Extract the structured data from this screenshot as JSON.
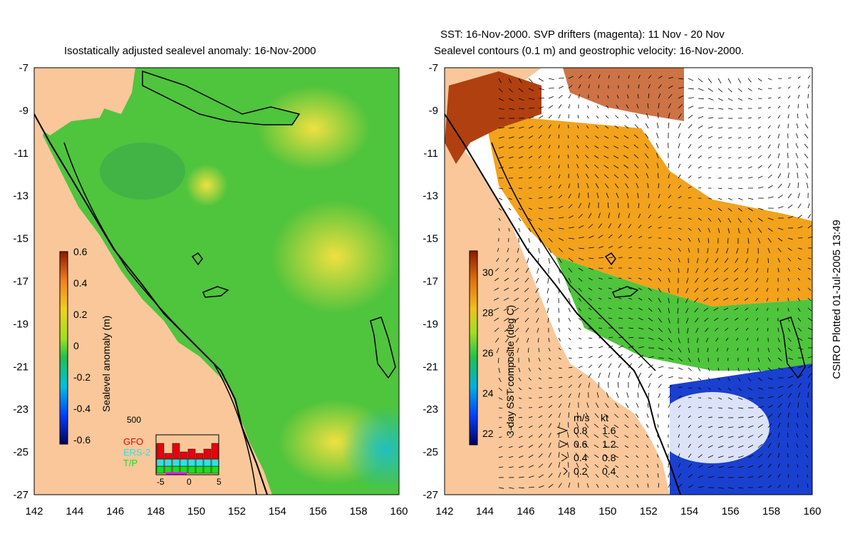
{
  "titles": {
    "left": "Isostatically adjusted sealevel anomaly: 16-Nov-2000",
    "right_line1": "SST: 16-Nov-2000. SVP drifters (magenta): 11 Nov - 20 Nov",
    "right_line2": "Sealevel contours (0.1 m) and geostrophic velocity: 16-Nov-2000."
  },
  "credit": "CSIRO Plotted 01-Jul-2005 13:49",
  "axes": {
    "x_ticks": [
      "142",
      "144",
      "146",
      "148",
      "150",
      "152",
      "154",
      "156",
      "158",
      "160"
    ],
    "y_ticks": [
      "-7",
      "-9",
      "-11",
      "-13",
      "-15",
      "-17",
      "-19",
      "-21",
      "-23",
      "-25",
      "-27"
    ],
    "x_ticks_right": [
      "144",
      "146",
      "148",
      "150",
      "152",
      "154",
      "156",
      "158",
      "160"
    ]
  },
  "left_colorbar": {
    "label": "Sealevel anomaly (m)",
    "ticks": [
      "0.6",
      "0.4",
      "0.2",
      "0",
      "-0.2",
      "-0.4",
      "-0.6"
    ]
  },
  "right_colorbar": {
    "label": "3-day SST composite (deg C)",
    "ticks": [
      "30",
      "28",
      "26",
      "24",
      "22"
    ]
  },
  "inset": {
    "top_label": "500",
    "legend": [
      "GFO",
      "ERS-2",
      "T/P"
    ],
    "x_ticks": [
      "-5",
      "0",
      "5"
    ],
    "colors": {
      "GFO": "#e8000b",
      "ERS-2": "#33e0e0",
      "T/P": "#1ddd1d"
    }
  },
  "velocity_legend": {
    "units": [
      "m/s",
      "kt"
    ],
    "rows": [
      {
        "ms": "0.8",
        "kt": "1.6"
      },
      {
        "ms": "0.6",
        "kt": "1.2"
      },
      {
        "ms": "0.4",
        "kt": "0.8"
      },
      {
        "ms": "0.2",
        "kt": "0.4"
      }
    ]
  },
  "colors": {
    "land": "#f9c79a",
    "ocean_green": "#4fc43d",
    "sst_orange": "#f2a21b",
    "sst_blue": "#1a40d0"
  }
}
